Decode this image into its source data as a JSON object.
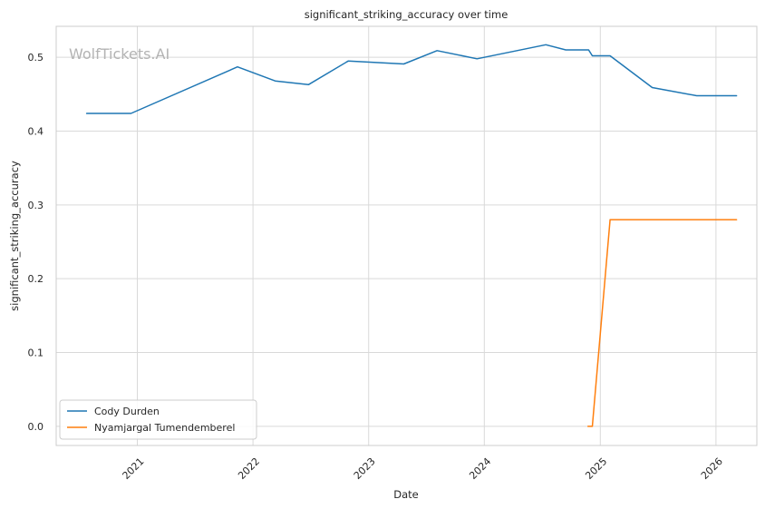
{
  "chart_data": {
    "type": "line",
    "title": "significant_striking_accuracy over time",
    "xlabel": "Date",
    "ylabel": "significant_striking_accuracy",
    "watermark": "WolfTickets.AI",
    "x_type": "date",
    "xlim": [
      "2020-04-20",
      "2026-05-10"
    ],
    "ylim": [
      -0.026,
      0.542
    ],
    "x_ticks": [
      "2021-01-01",
      "2022-01-01",
      "2023-01-01",
      "2024-01-01",
      "2025-01-01",
      "2026-01-01"
    ],
    "x_tick_labels": [
      "2021",
      "2022",
      "2023",
      "2024",
      "2025",
      "2026"
    ],
    "y_ticks": [
      0.0,
      0.1,
      0.2,
      0.3,
      0.4,
      0.5
    ],
    "y_tick_labels": [
      "0.0",
      "0.1",
      "0.2",
      "0.3",
      "0.4",
      "0.5"
    ],
    "grid": true,
    "legend_position": "bottom-left",
    "series": [
      {
        "name": "Cody Durden",
        "color": "#1f77b4",
        "points": [
          {
            "x": "2020-07-25",
            "y": 0.424
          },
          {
            "x": "2020-12-12",
            "y": 0.424
          },
          {
            "x": "2021-11-13",
            "y": 0.487
          },
          {
            "x": "2022-03-12",
            "y": 0.468
          },
          {
            "x": "2022-06-25",
            "y": 0.463
          },
          {
            "x": "2022-10-29",
            "y": 0.495
          },
          {
            "x": "2023-04-22",
            "y": 0.491
          },
          {
            "x": "2023-08-05",
            "y": 0.509
          },
          {
            "x": "2023-12-09",
            "y": 0.498
          },
          {
            "x": "2024-07-13",
            "y": 0.517
          },
          {
            "x": "2024-09-14",
            "y": 0.51
          },
          {
            "x": "2024-11-25",
            "y": 0.51
          },
          {
            "x": "2024-12-07",
            "y": 0.502
          },
          {
            "x": "2025-02-01",
            "y": 0.502
          },
          {
            "x": "2025-06-14",
            "y": 0.459
          },
          {
            "x": "2025-11-01",
            "y": 0.448
          },
          {
            "x": "2026-03-07",
            "y": 0.448
          }
        ]
      },
      {
        "name": "Nyamjargal Tumendemberel",
        "color": "#ff7f0e",
        "points": [
          {
            "x": "2024-11-23",
            "y": 0.0
          },
          {
            "x": "2024-12-07",
            "y": 0.0
          },
          {
            "x": "2025-02-01",
            "y": 0.28
          },
          {
            "x": "2026-03-07",
            "y": 0.28
          }
        ]
      }
    ]
  }
}
